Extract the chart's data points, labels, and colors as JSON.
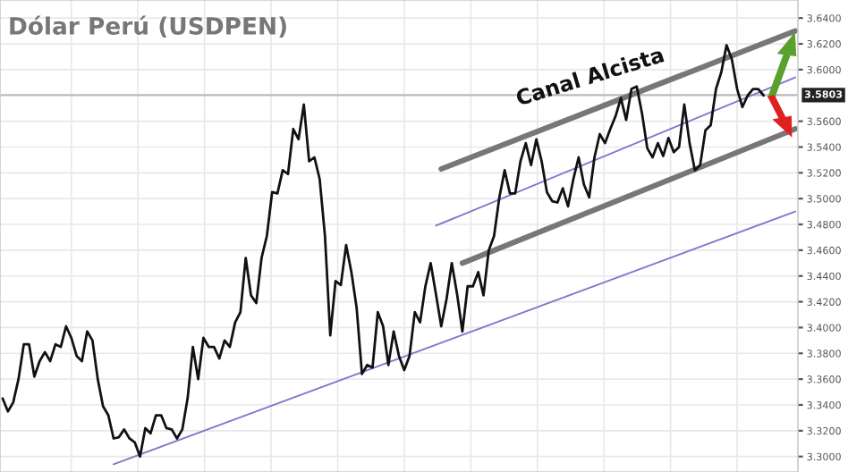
{
  "chart_data": {
    "type": "line",
    "title": "Dólar Perú (USDPEN)",
    "categories": [
      null,
      null,
      null,
      null,
      null,
      null,
      null,
      null,
      null,
      null,
      null,
      null,
      null,
      null,
      null,
      null,
      null,
      null,
      null,
      null,
      null,
      null,
      null,
      null,
      null,
      null,
      null,
      null,
      null,
      null,
      null,
      null,
      null,
      null,
      null,
      null,
      null,
      null,
      null,
      null,
      null,
      null,
      null,
      null,
      null,
      null,
      null,
      null,
      null,
      null,
      null,
      null,
      null,
      null,
      null,
      null,
      null,
      null,
      null,
      null,
      null,
      null,
      null,
      null,
      null,
      null,
      null,
      null,
      null,
      null,
      null,
      null,
      null,
      null,
      null,
      null,
      null,
      null,
      null,
      null,
      null,
      null,
      null,
      null,
      null,
      null,
      null,
      null,
      null,
      null,
      null,
      null,
      null,
      null,
      null,
      null,
      null,
      null,
      null,
      null,
      null,
      null,
      null,
      null,
      null,
      null,
      null,
      null,
      null,
      null,
      null,
      null,
      null,
      null,
      null,
      null,
      null,
      null,
      null,
      null,
      null,
      null,
      null,
      null,
      null,
      null,
      null,
      null,
      null,
      null,
      null,
      null,
      null,
      null,
      null,
      null,
      null,
      null,
      null,
      null,
      null,
      null,
      null,
      null,
      null,
      null,
      null,
      null,
      null,
      null,
      null
    ],
    "ylim": [
      3.288,
      3.654
    ],
    "yticks": [
      {
        "value": 3.3,
        "label": "3.3000"
      },
      {
        "value": 3.32,
        "label": "3.3200"
      },
      {
        "value": 3.34,
        "label": "3.3400"
      },
      {
        "value": 3.36,
        "label": "3.3600"
      },
      {
        "value": 3.38,
        "label": "3.3800"
      },
      {
        "value": 3.4,
        "label": "3.4000"
      },
      {
        "value": 3.42,
        "label": "3.4200"
      },
      {
        "value": 3.44,
        "label": "3.4400"
      },
      {
        "value": 3.46,
        "label": "3.4600"
      },
      {
        "value": 3.48,
        "label": "3.4800"
      },
      {
        "value": 3.5,
        "label": "3.5000"
      },
      {
        "value": 3.52,
        "label": "3.5200"
      },
      {
        "value": 3.54,
        "label": "3.5400"
      },
      {
        "value": 3.56,
        "label": "3.5600"
      },
      {
        "value": 3.6,
        "label": "3.6000"
      },
      {
        "value": 3.62,
        "label": "3.6200"
      },
      {
        "value": 3.64,
        "label": "3.6400"
      }
    ],
    "series": [
      {
        "color": "#111111",
        "values": [
          3.345,
          3.335,
          3.342,
          3.36,
          3.387,
          3.387,
          3.362,
          3.374,
          3.381,
          3.374,
          3.387,
          3.385,
          3.401,
          3.392,
          3.378,
          3.374,
          3.397,
          3.39,
          3.36,
          3.339,
          3.332,
          3.314,
          3.315,
          3.321,
          3.314,
          3.311,
          3.3,
          3.322,
          3.318,
          3.332,
          3.332,
          3.322,
          3.321,
          3.314,
          3.321,
          3.345,
          3.385,
          3.36,
          3.392,
          3.385,
          3.385,
          3.376,
          3.39,
          3.385,
          3.404,
          3.412,
          3.454,
          3.425,
          3.419,
          3.454,
          3.471,
          3.505,
          3.504,
          3.522,
          3.519,
          3.554,
          3.546,
          3.573,
          3.529,
          3.532,
          3.515,
          3.471,
          3.394,
          3.436,
          3.433,
          3.464,
          3.443,
          3.415,
          3.364,
          3.371,
          3.369,
          3.412,
          3.401,
          3.371,
          3.397,
          3.378,
          3.367,
          3.378,
          3.412,
          3.404,
          3.432,
          3.45,
          3.426,
          3.401,
          3.422,
          3.45,
          3.426,
          3.397,
          3.432,
          3.432,
          3.443,
          3.425,
          3.46,
          3.471,
          3.501,
          3.522,
          3.504,
          3.504,
          3.529,
          3.543,
          3.526,
          3.546,
          3.529,
          3.505,
          3.498,
          3.497,
          3.508,
          3.494,
          3.515,
          3.532,
          3.511,
          3.501,
          3.532,
          3.55,
          3.543,
          3.554,
          3.564,
          3.578,
          3.561,
          3.585,
          3.587,
          3.566,
          3.539,
          3.532,
          3.543,
          3.533,
          3.547,
          3.536,
          3.54,
          3.573,
          3.543,
          3.522,
          3.526,
          3.553,
          3.557,
          3.585,
          3.598,
          3.619,
          3.608,
          3.585,
          3.571,
          3.58,
          3.585,
          3.585,
          3.58,
          null,
          null,
          null,
          null,
          null,
          null
        ]
      },
      {
        "type": "line",
        "color": "#777777",
        "values": [
          null,
          null,
          null,
          null,
          null,
          null,
          null,
          null,
          null,
          null,
          null,
          null,
          null,
          null,
          null,
          null,
          null,
          null,
          null,
          null,
          null,
          null,
          null,
          null,
          null,
          null,
          null,
          null,
          null,
          null,
          null,
          null,
          null,
          null,
          null,
          null,
          null,
          null,
          null,
          null,
          null,
          null,
          null,
          null,
          null,
          null,
          null,
          null,
          null,
          null,
          null,
          null,
          null,
          null,
          null,
          null,
          null,
          null,
          null,
          null,
          null,
          null,
          null,
          null,
          null,
          null,
          null,
          null,
          null,
          null,
          null,
          null,
          null,
          null,
          null,
          null,
          null,
          null,
          null,
          null,
          null,
          null,
          null,
          3.523,
          null,
          null,
          null,
          null,
          null,
          null,
          null,
          null,
          null,
          null,
          null,
          null,
          null,
          null,
          null,
          null,
          null,
          null,
          null,
          null,
          null,
          null,
          null,
          null,
          null,
          null,
          null,
          null,
          null,
          null,
          null,
          null,
          null,
          null,
          null,
          null,
          null,
          null,
          null,
          null,
          null,
          null,
          null,
          null,
          null,
          null,
          null,
          null,
          null,
          null,
          null,
          null,
          null,
          null,
          null,
          null,
          null,
          null,
          null,
          null,
          null,
          null,
          null,
          null,
          null,
          null,
          3.63
        ]
      },
      {
        "type": "line",
        "color": "#777777",
        "values": [
          null,
          null,
          null,
          null,
          null,
          null,
          null,
          null,
          null,
          null,
          null,
          null,
          null,
          null,
          null,
          null,
          null,
          null,
          null,
          null,
          null,
          null,
          null,
          null,
          null,
          null,
          null,
          null,
          null,
          null,
          null,
          null,
          null,
          null,
          null,
          null,
          null,
          null,
          null,
          null,
          null,
          null,
          null,
          null,
          null,
          null,
          null,
          null,
          null,
          null,
          null,
          null,
          null,
          null,
          null,
          null,
          null,
          null,
          null,
          null,
          null,
          null,
          null,
          null,
          null,
          null,
          null,
          null,
          null,
          null,
          null,
          null,
          null,
          null,
          null,
          null,
          null,
          null,
          null,
          null,
          null,
          null,
          null,
          null,
          null,
          null,
          null,
          3.45,
          null,
          null,
          null,
          null,
          null,
          null,
          null,
          null,
          null,
          null,
          null,
          null,
          null,
          null,
          null,
          null,
          null,
          null,
          null,
          null,
          null,
          null,
          null,
          null,
          null,
          null,
          null,
          null,
          null,
          null,
          null,
          null,
          null,
          null,
          null,
          null,
          null,
          null,
          null,
          null,
          null,
          null,
          null,
          null,
          null,
          null,
          null,
          null,
          null,
          null,
          null,
          null,
          null,
          null,
          null,
          null,
          null,
          null,
          null,
          null,
          null,
          null,
          3.554
        ]
      },
      {
        "type": "line",
        "color": "#7b7bcc",
        "values": [
          null,
          null,
          null,
          null,
          null,
          null,
          null,
          null,
          null,
          null,
          null,
          null,
          null,
          null,
          null,
          null,
          null,
          null,
          null,
          null,
          null,
          null,
          null,
          null,
          null,
          null,
          null,
          null,
          null,
          null,
          null,
          null,
          null,
          null,
          null,
          null,
          null,
          null,
          null,
          null,
          null,
          null,
          null,
          null,
          null,
          null,
          null,
          null,
          null,
          null,
          null,
          null,
          null,
          null,
          null,
          null,
          null,
          null,
          null,
          null,
          null,
          null,
          null,
          null,
          null,
          null,
          null,
          null,
          null,
          null,
          null,
          null,
          null,
          null,
          null,
          null,
          null,
          null,
          null,
          null,
          null,
          null,
          3.479,
          null,
          null,
          null,
          null,
          null,
          null,
          null,
          null,
          null,
          null,
          null,
          null,
          null,
          null,
          null,
          null,
          null,
          null,
          null,
          null,
          null,
          null,
          null,
          null,
          null,
          null,
          null,
          null,
          null,
          null,
          null,
          null,
          null,
          null,
          null,
          null,
          null,
          null,
          null,
          null,
          null,
          null,
          null,
          null,
          null,
          null,
          null,
          null,
          null,
          null,
          null,
          null,
          null,
          null,
          null,
          null,
          null,
          null,
          null,
          null,
          null,
          null,
          null,
          null,
          null,
          null,
          null,
          3.594
        ]
      },
      {
        "type": "line",
        "color": "#7b7bcc",
        "values": [
          null,
          null,
          null,
          null,
          null,
          null,
          null,
          null,
          null,
          null,
          null,
          null,
          null,
          null,
          null,
          null,
          null,
          null,
          null,
          null,
          null,
          3.294,
          null,
          null,
          null,
          null,
          null,
          null,
          null,
          null,
          null,
          null,
          null,
          null,
          null,
          null,
          null,
          null,
          null,
          null,
          null,
          null,
          null,
          null,
          null,
          null,
          null,
          null,
          null,
          null,
          null,
          null,
          null,
          null,
          null,
          null,
          null,
          null,
          null,
          null,
          null,
          null,
          null,
          null,
          null,
          null,
          null,
          null,
          null,
          null,
          null,
          null,
          null,
          null,
          null,
          null,
          null,
          null,
          null,
          null,
          null,
          null,
          null,
          null,
          null,
          null,
          null,
          null,
          null,
          null,
          null,
          null,
          null,
          null,
          null,
          null,
          null,
          null,
          null,
          null,
          null,
          null,
          null,
          null,
          null,
          null,
          null,
          null,
          null,
          null,
          null,
          null,
          null,
          null,
          null,
          null,
          null,
          null,
          null,
          null,
          null,
          null,
          null,
          null,
          null,
          null,
          null,
          null,
          null,
          null,
          null,
          null,
          null,
          null,
          null,
          null,
          null,
          null,
          null,
          null,
          null,
          null,
          null,
          null,
          null,
          null,
          null,
          null,
          null,
          null,
          3.49
        ]
      }
    ],
    "ref_lines": [
      {
        "axis": "y",
        "value": 3.5803,
        "label": "3.5803",
        "color": "#bbbbbb"
      }
    ],
    "annotations": [
      "Canal Alcista"
    ],
    "grid": true,
    "tick_labels": "y",
    "marker": "none",
    "line_style": "solid",
    "legend": false
  }
}
